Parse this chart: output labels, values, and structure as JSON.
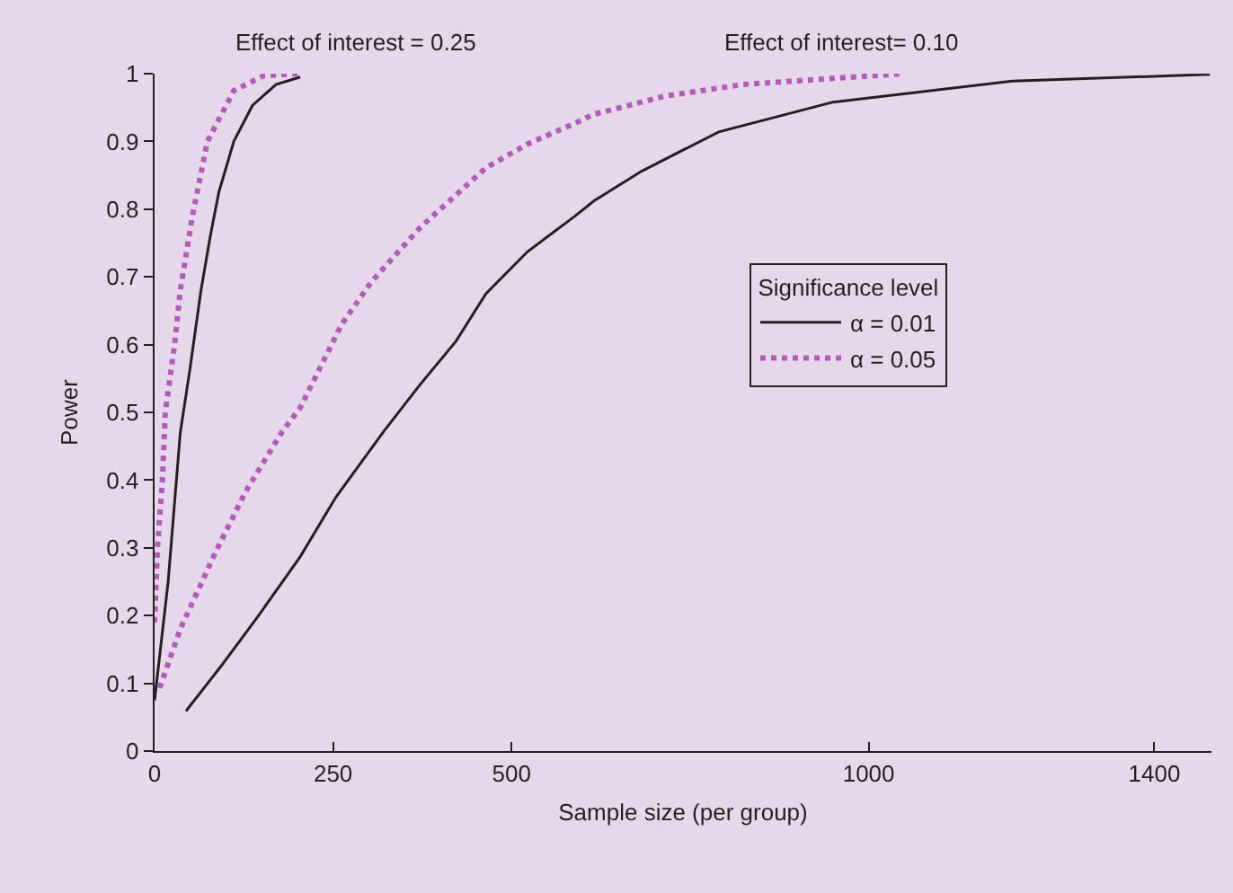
{
  "chart_data": {
    "type": "line",
    "xlabel": "Sample size (per group)",
    "ylabel": "Power",
    "annotations": [
      "Effect of interest = 0.25",
      "Effect of interest= 0.10"
    ],
    "legend_title": "Significance level",
    "legend": "right",
    "grid": false,
    "marker": "none",
    "xlim": [
      0,
      1480
    ],
    "xticks": [
      0,
      250,
      500,
      1000,
      1400
    ],
    "ylim": [
      0,
      1
    ],
    "yticks": [
      0,
      0.1,
      0.2,
      0.3,
      0.4,
      0.5,
      0.6,
      0.7,
      0.8,
      0.9,
      1
    ],
    "series": [
      {
        "name": "α = 0.01",
        "color": "#231f20",
        "line_style": "solid",
        "x": [
          0,
          19,
          36,
          49,
          65,
          78,
          90,
          111,
          137,
          170,
          204
        ],
        "values": [
          0.075,
          0.25,
          0.47,
          0.56,
          0.68,
          0.76,
          0.825,
          0.9,
          0.953,
          0.984,
          0.995
        ]
      },
      {
        "name": "α = 0.05",
        "color": "#b05cb8",
        "line_style": "dotted",
        "x": [
          0,
          4,
          11,
          15,
          28,
          36,
          53,
          74,
          111,
          153,
          204
        ],
        "values": [
          0.19,
          0.3,
          0.4,
          0.5,
          0.6,
          0.68,
          0.79,
          0.9,
          0.975,
          0.997,
          1.0
        ]
      },
      {
        "color": "#231f20",
        "line_style": "solid",
        "x": [
          44,
          95,
          145,
          204,
          254,
          321,
          371,
          422,
          464,
          522,
          589,
          615,
          682,
          790,
          950,
          1201,
          1478
        ],
        "values": [
          0.059,
          0.128,
          0.199,
          0.287,
          0.375,
          0.472,
          0.54,
          0.605,
          0.675,
          0.737,
          0.79,
          0.812,
          0.856,
          0.914,
          0.958,
          0.989,
          0.999
        ]
      },
      {
        "color": "#b05cb8",
        "line_style": "dotted",
        "x": [
          7,
          36,
          86,
          128,
          179,
          204,
          262,
          304,
          371,
          464,
          522,
          589,
          615,
          715,
          824,
          950,
          1050
        ],
        "values": [
          0.093,
          0.18,
          0.295,
          0.384,
          0.472,
          0.507,
          0.63,
          0.693,
          0.772,
          0.861,
          0.896,
          0.927,
          0.94,
          0.967,
          0.984,
          0.993,
          1.0
        ]
      }
    ]
  }
}
